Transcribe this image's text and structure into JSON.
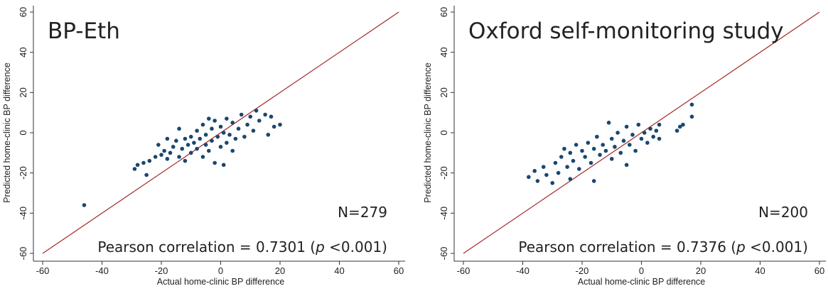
{
  "chart_data": [
    {
      "type": "scatter",
      "title": "BP-Eth",
      "x_label": "Actual home-clinic BP difference",
      "y_label": "Predicted home-clinic BP difference",
      "annotation_n": "N=279",
      "annotation_r": {
        "before": "Pearson correlation = 0.7301 (",
        "italic": "p",
        "after": " <0.001)"
      },
      "color": "#1a476f",
      "line_color": "#a52a2a",
      "x": [
        -46,
        -29,
        -28,
        -26,
        -25,
        -24,
        -22,
        -21,
        -20,
        -19,
        -18,
        -17,
        -16,
        -15,
        -14,
        -13,
        -12,
        -12,
        -11,
        -10,
        -10,
        -9,
        -8,
        -8,
        -7,
        -6,
        -6,
        -5,
        -5,
        -4,
        -3,
        -3,
        -2,
        -2,
        -1,
        0,
        0,
        1,
        2,
        2,
        3,
        4,
        5,
        6,
        7,
        8,
        9,
        10,
        11,
        12,
        13,
        15,
        16,
        17,
        18,
        20,
        -4,
        1,
        -14,
        -18,
        4
      ],
      "values": [
        -36,
        -18,
        -16,
        -15,
        -21,
        -14,
        -12,
        -6,
        -11,
        -9,
        -13,
        -10,
        -7,
        -4,
        -12,
        -8,
        -3,
        -14,
        -6,
        -2,
        -10,
        -5,
        1,
        -8,
        -3,
        -12,
        4,
        -1,
        -6,
        -9,
        2,
        -4,
        -15,
        6,
        -2,
        -7,
        3,
        0,
        -5,
        7,
        -1,
        5,
        -3,
        2,
        9,
        -2,
        4,
        8,
        1,
        11,
        6,
        9,
        -1,
        8,
        3,
        4,
        7,
        -16,
        2,
        -3,
        -9
      ],
      "xlim": [
        -60,
        60
      ],
      "ylim": [
        -60,
        60
      ],
      "xticks": [
        -60,
        -40,
        -20,
        0,
        20,
        40,
        60
      ],
      "yticks": [
        -60,
        -40,
        -20,
        0,
        20,
        40,
        60
      ]
    },
    {
      "type": "scatter",
      "title": "Oxford self-monitoring study",
      "x_label": "Actual home-clinic BP difference",
      "y_label": "Predicted home-clinic BP difference",
      "annotation_n": "N=200",
      "annotation_r": {
        "before": "Pearson correlation = 0.7376 (",
        "italic": "p",
        "after": " <0.001)"
      },
      "color": "#1a476f",
      "line_color": "#a52a2a",
      "x": [
        -38,
        -36,
        -35,
        -33,
        -32,
        -30,
        -29,
        -28,
        -27,
        -26,
        -25,
        -24,
        -23,
        -22,
        -21,
        -20,
        -19,
        -18,
        -17,
        -16,
        -15,
        -14,
        -13,
        -12,
        -11,
        -10,
        -10,
        -9,
        -8,
        -7,
        -6,
        -5,
        -5,
        -4,
        -3,
        -2,
        -1,
        0,
        1,
        2,
        3,
        4,
        5,
        6,
        6,
        12,
        13,
        14,
        17,
        17,
        -16,
        -24
      ],
      "values": [
        -22,
        -19,
        -24,
        -17,
        -21,
        -25,
        -15,
        -20,
        -12,
        -8,
        -17,
        -10,
        -14,
        -6,
        -18,
        -9,
        -12,
        -5,
        -15,
        -8,
        -2,
        -11,
        -6,
        -9,
        5,
        -3,
        -13,
        -7,
        0,
        -10,
        -4,
        3,
        -16,
        -6,
        -1,
        -9,
        4,
        -3,
        0,
        -5,
        2,
        -2,
        1,
        -3,
        4,
        1,
        3,
        4,
        8,
        14,
        -24,
        -23
      ],
      "xlim": [
        -60,
        60
      ],
      "ylim": [
        -60,
        60
      ],
      "xticks": [
        -60,
        -40,
        -20,
        0,
        20,
        40,
        60
      ],
      "yticks": [
        -60,
        -40,
        -20,
        0,
        20,
        40,
        60
      ]
    }
  ]
}
